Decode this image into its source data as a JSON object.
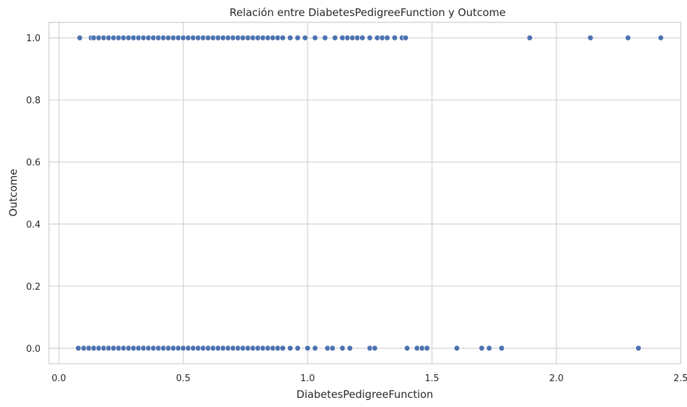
{
  "chart_data": {
    "type": "scatter",
    "title": "Relación entre DiabetesPedigreeFunction y Outcome",
    "xlabel": "DiabetesPedigreeFunction",
    "ylabel": "Outcome",
    "xlim": [
      -0.04,
      2.5
    ],
    "ylim": [
      -0.05,
      1.05
    ],
    "xticks": [
      0.0,
      0.5,
      1.0,
      1.5,
      2.0,
      2.5
    ],
    "xtick_labels": [
      "0.0",
      "0.5",
      "1.0",
      "1.5",
      "2.0",
      "2.5"
    ],
    "yticks": [
      0.0,
      0.2,
      0.4,
      0.6,
      0.8,
      1.0
    ],
    "ytick_labels": [
      "0.0",
      "0.2",
      "0.4",
      "0.6",
      "0.8",
      "1.0"
    ],
    "grid": true,
    "color": "#4c72b0",
    "series": [
      {
        "x": [
          0.084,
          0.13,
          0.14,
          0.16,
          0.18,
          0.2,
          0.22,
          0.24,
          0.26,
          0.28,
          0.3,
          0.32,
          0.34,
          0.36,
          0.38,
          0.4,
          0.42,
          0.44,
          0.46,
          0.48,
          0.5,
          0.52,
          0.54,
          0.56,
          0.58,
          0.6,
          0.62,
          0.64,
          0.66,
          0.68,
          0.7,
          0.72,
          0.74,
          0.76,
          0.78,
          0.8,
          0.82,
          0.84,
          0.86,
          0.88,
          0.9,
          0.93,
          0.96,
          0.99,
          1.03,
          1.07,
          1.11,
          1.14,
          1.16,
          1.18,
          1.2,
          1.22,
          1.25,
          1.28,
          1.3,
          1.32,
          1.35,
          1.38,
          1.394,
          1.893,
          2.137,
          2.288,
          2.42
        ],
        "y": [
          1,
          1,
          1,
          1,
          1,
          1,
          1,
          1,
          1,
          1,
          1,
          1,
          1,
          1,
          1,
          1,
          1,
          1,
          1,
          1,
          1,
          1,
          1,
          1,
          1,
          1,
          1,
          1,
          1,
          1,
          1,
          1,
          1,
          1,
          1,
          1,
          1,
          1,
          1,
          1,
          1,
          1,
          1,
          1,
          1,
          1,
          1,
          1,
          1,
          1,
          1,
          1,
          1,
          1,
          1,
          1,
          1,
          1,
          1,
          1,
          1,
          1,
          1
        ]
      },
      {
        "x": [
          0.078,
          0.1,
          0.12,
          0.14,
          0.16,
          0.18,
          0.2,
          0.22,
          0.24,
          0.26,
          0.28,
          0.3,
          0.32,
          0.34,
          0.36,
          0.38,
          0.4,
          0.42,
          0.44,
          0.46,
          0.48,
          0.5,
          0.52,
          0.54,
          0.56,
          0.58,
          0.6,
          0.62,
          0.64,
          0.66,
          0.68,
          0.7,
          0.72,
          0.74,
          0.76,
          0.78,
          0.8,
          0.82,
          0.84,
          0.86,
          0.88,
          0.9,
          0.93,
          0.96,
          1.0,
          1.03,
          1.08,
          1.1,
          1.14,
          1.17,
          1.25,
          1.27,
          1.4,
          1.44,
          1.46,
          1.48,
          1.6,
          1.7,
          1.73,
          1.78,
          2.33
        ],
        "y": [
          0,
          0,
          0,
          0,
          0,
          0,
          0,
          0,
          0,
          0,
          0,
          0,
          0,
          0,
          0,
          0,
          0,
          0,
          0,
          0,
          0,
          0,
          0,
          0,
          0,
          0,
          0,
          0,
          0,
          0,
          0,
          0,
          0,
          0,
          0,
          0,
          0,
          0,
          0,
          0,
          0,
          0,
          0,
          0,
          0,
          0,
          0,
          0,
          0,
          0,
          0,
          0,
          0,
          0,
          0,
          0,
          0,
          0,
          0,
          0,
          0
        ]
      }
    ]
  }
}
